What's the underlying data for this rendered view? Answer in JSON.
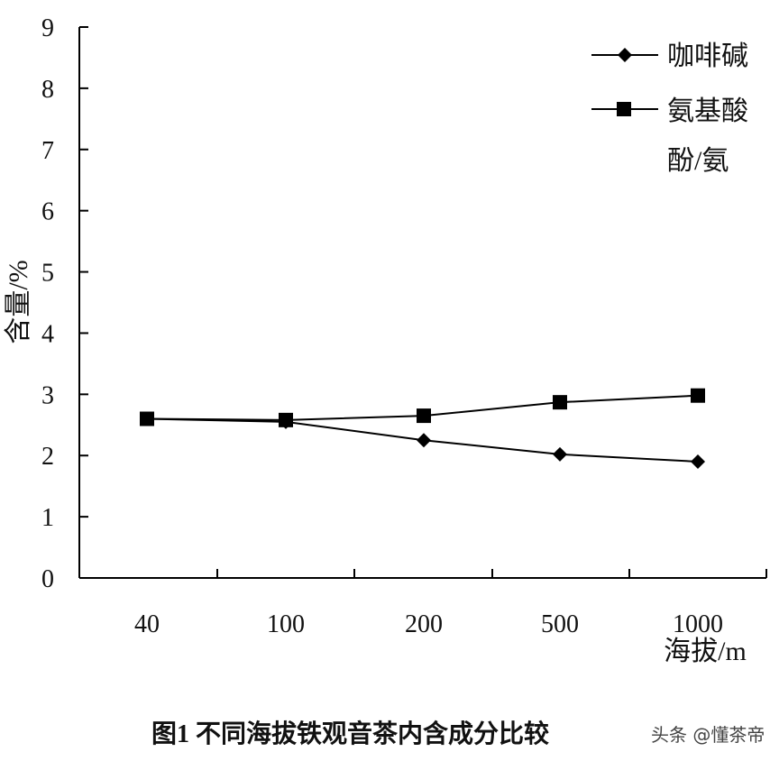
{
  "chart_data": {
    "type": "line",
    "categories": [
      "40",
      "100",
      "200",
      "500",
      "1000"
    ],
    "series": [
      {
        "name": "咖啡碱",
        "marker": "diamond",
        "values": [
          2.6,
          2.55,
          2.25,
          2.02,
          1.9
        ]
      },
      {
        "name": "氨基酸",
        "marker": "square",
        "values": [
          2.6,
          2.58,
          2.65,
          2.87,
          2.98
        ]
      }
    ],
    "legend_extra": "酚/氨",
    "ylabel": "含量/%",
    "xlabel": "海拔/m",
    "ylim": [
      0,
      9
    ],
    "yticks": [
      "0",
      "1",
      "2",
      "3",
      "4",
      "5",
      "6",
      "7",
      "8",
      "9"
    ],
    "grid": false,
    "legend_position": "top-right",
    "caption": "图1  不同海拔铁观音茶内含成分比较",
    "watermark": "头条 @懂茶帝"
  }
}
